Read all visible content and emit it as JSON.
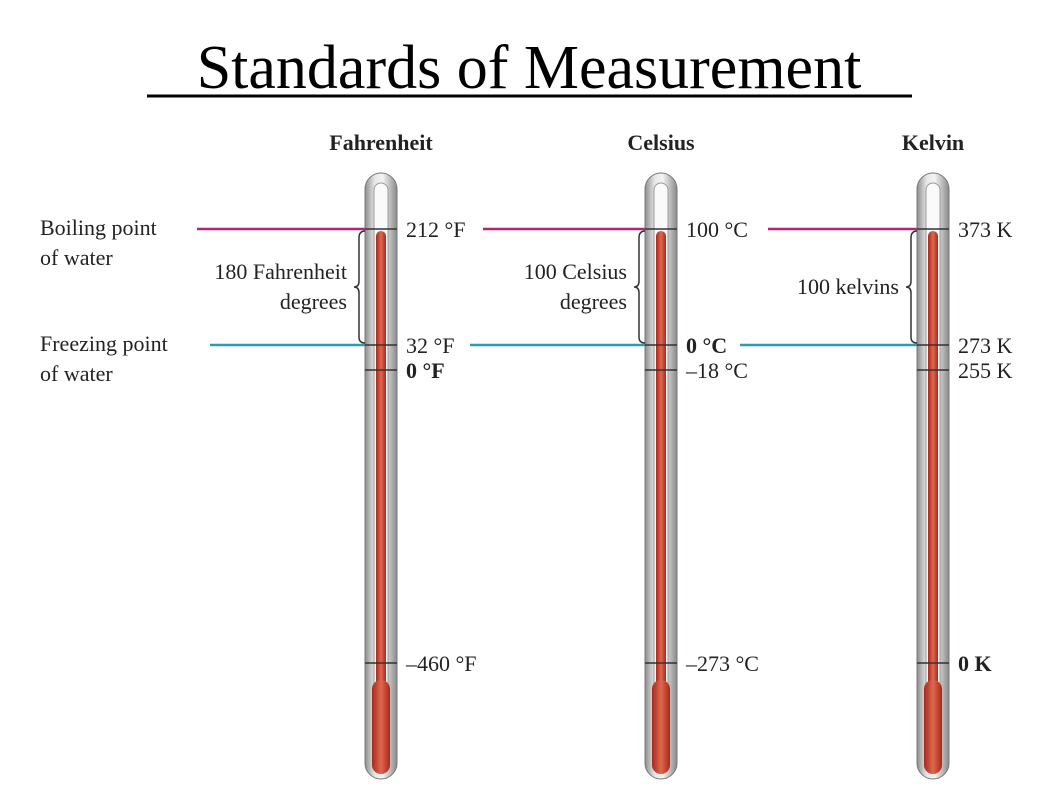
{
  "title": "Standards of Measurement",
  "annotations": {
    "boiling": [
      "Boiling point",
      "of water"
    ],
    "freezing": [
      "Freezing point",
      "of water"
    ]
  },
  "thermometers": [
    {
      "name": "Fahrenheit",
      "span": [
        "180 Fahrenheit",
        "degrees"
      ],
      "marks": [
        "212 °F",
        "32 °F",
        "0 °F",
        "–460 °F"
      ]
    },
    {
      "name": "Celsius",
      "span": [
        "100 Celsius",
        "degrees"
      ],
      "marks": [
        "100 °C",
        "0 °C",
        "–18 °C",
        "–273 °C"
      ]
    },
    {
      "name": "Kelvin",
      "span": [
        "100 kelvins"
      ],
      "marks": [
        "373 K",
        "273 K",
        "255 K",
        "0 K"
      ]
    }
  ]
}
